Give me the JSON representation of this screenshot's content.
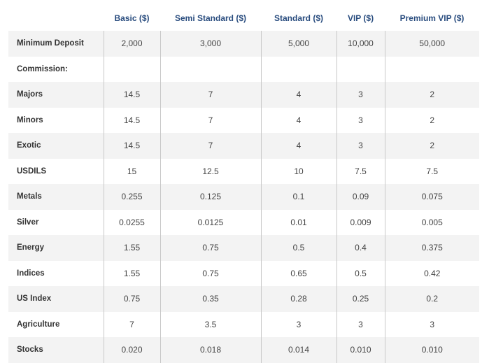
{
  "table": {
    "columns": [
      "Basic ($)",
      "Semi Standard ($)",
      "Standard ($)",
      "VIP ($)",
      "Premium VIP ($)"
    ],
    "rows": [
      {
        "label": "Minimum Deposit",
        "values": [
          "2,000",
          "3,000",
          "5,000",
          "10,000",
          "50,000"
        ]
      },
      {
        "label": "Commission:",
        "values": []
      },
      {
        "label": "Majors",
        "values": [
          "14.5",
          "7",
          "4",
          "3",
          "2"
        ]
      },
      {
        "label": "Minors",
        "values": [
          "14.5",
          "7",
          "4",
          "3",
          "2"
        ]
      },
      {
        "label": "Exotic",
        "values": [
          "14.5",
          "7",
          "4",
          "3",
          "2"
        ]
      },
      {
        "label": "USDILS",
        "values": [
          "15",
          "12.5",
          "10",
          "7.5",
          "7.5"
        ]
      },
      {
        "label": "Metals",
        "values": [
          "0.255",
          "0.125",
          "0.1",
          "0.09",
          "0.075"
        ]
      },
      {
        "label": "Silver",
        "values": [
          "0.0255",
          "0.0125",
          "0.01",
          "0.009",
          "0.005"
        ]
      },
      {
        "label": "Energy",
        "values": [
          "1.55",
          "0.75",
          "0.5",
          "0.4",
          "0.375"
        ]
      },
      {
        "label": "Indices",
        "values": [
          "1.55",
          "0.75",
          "0.65",
          "0.5",
          "0.42"
        ]
      },
      {
        "label": "US Index",
        "values": [
          "0.75",
          "0.35",
          "0.28",
          "0.25",
          "0.2"
        ]
      },
      {
        "label": "Agriculture",
        "values": [
          "7",
          "3.5",
          "3",
          "3",
          "3"
        ]
      },
      {
        "label": "Stocks",
        "values": [
          "0.020",
          "0.018",
          "0.014",
          "0.010",
          "0.010"
        ]
      }
    ]
  }
}
